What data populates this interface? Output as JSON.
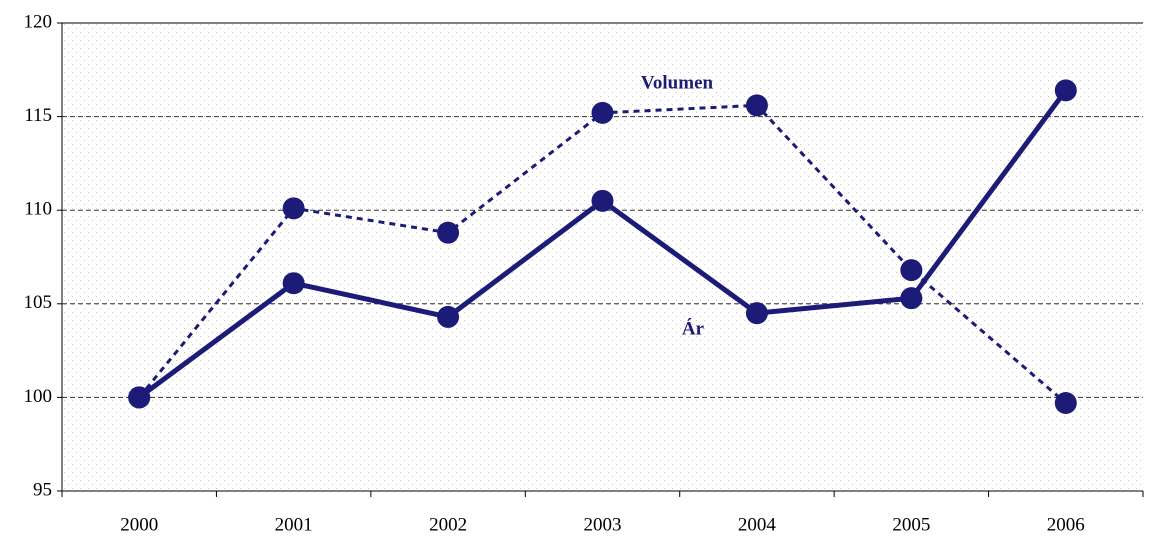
{
  "chart_data": {
    "type": "line",
    "categories": [
      "2000",
      "2001",
      "2002",
      "2003",
      "2004",
      "2005",
      "2006"
    ],
    "series": [
      {
        "name": "Volumen",
        "color": "#1c1c78",
        "dash": true,
        "values": [
          100,
          110.1,
          108.8,
          115.2,
          115.6,
          106.8,
          99.7
        ]
      },
      {
        "name": "Ár",
        "color": "#1c1c78",
        "dash": false,
        "values": [
          100,
          106.1,
          104.3,
          110.5,
          104.5,
          105.3,
          116.4
        ]
      }
    ],
    "ylim": [
      95,
      120
    ],
    "yticks": [
      95,
      100,
      105,
      110,
      115,
      120
    ],
    "grid": true
  }
}
